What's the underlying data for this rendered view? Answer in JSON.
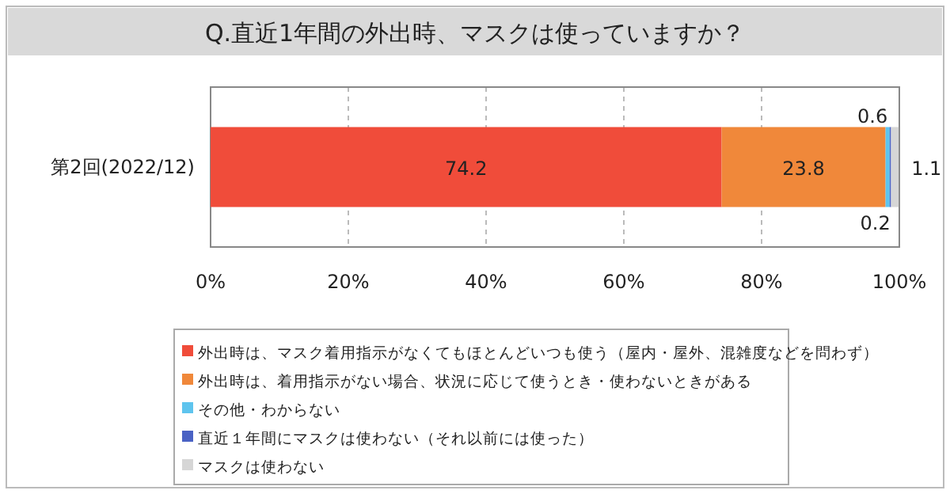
{
  "chart_data": {
    "type": "bar",
    "orientation": "horizontal",
    "stacked": true,
    "title": "Q.直近1年間の外出時、マスクは使っていますか？",
    "categories": [
      "第2回(2022/12)"
    ],
    "series": [
      {
        "name": "外出時は、マスク着用指示がなくてもほとんどいつも使う（屋内・屋外、混雑度などを問わず）",
        "color": "#f04c3a",
        "values": [
          74.2
        ]
      },
      {
        "name": "外出時は、着用指示がない場合、状況に応じて使うとき・使わないときがある",
        "color": "#f0883a",
        "values": [
          23.8
        ]
      },
      {
        "name": "その他・わからない",
        "color": "#5ec4ee",
        "values": [
          0.6
        ]
      },
      {
        "name": "直近１年間にマスクは使わない（それ以前には使った）",
        "color": "#4a62c4",
        "values": [
          0.2
        ]
      },
      {
        "name": "マスクは使わない",
        "color": "#d6d6d6",
        "values": [
          1.1
        ]
      }
    ],
    "xlim": [
      0,
      100
    ],
    "xticks": [
      {
        "value": 0,
        "label": "0%"
      },
      {
        "value": 20,
        "label": "20%"
      },
      {
        "value": 40,
        "label": "40%"
      },
      {
        "value": 60,
        "label": "60%"
      },
      {
        "value": 80,
        "label": "80%"
      },
      {
        "value": 100,
        "label": "100%"
      }
    ],
    "grid": "x",
    "legend": "bottom",
    "data_labels": true
  }
}
